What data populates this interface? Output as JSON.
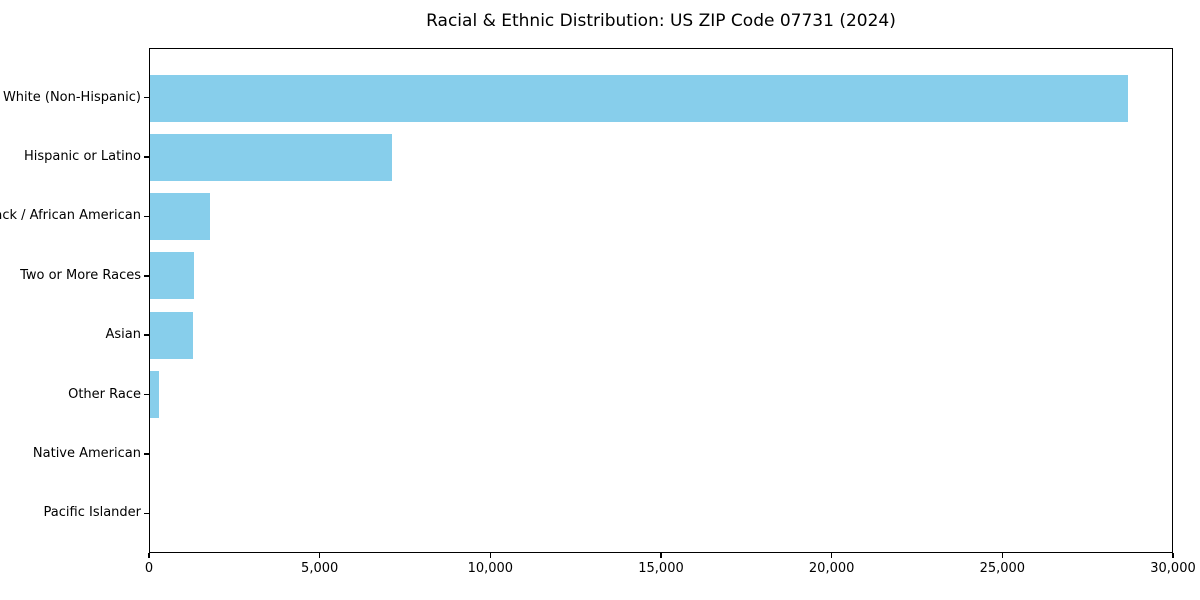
{
  "figure": {
    "background": "#ffffff",
    "text_color": "#000000"
  },
  "chart_data": {
    "type": "bar",
    "orientation": "horizontal",
    "title": "Racial & Ethnic Distribution: US ZIP Code 07731 (2024)",
    "categories": [
      "White (Non-Hispanic)",
      "Hispanic or Latino",
      "Black / African American",
      "Two or More Races",
      "Asian",
      "Other Race",
      "Native American",
      "Pacific Islander"
    ],
    "values": [
      28700,
      7100,
      1750,
      1300,
      1250,
      250,
      0,
      0
    ],
    "xlabel": "",
    "ylabel": "",
    "xlim": [
      0,
      30000
    ],
    "x_ticks": [
      {
        "value": 0,
        "label": "0"
      },
      {
        "value": 5000,
        "label": "5,000"
      },
      {
        "value": 10000,
        "label": "10,000"
      },
      {
        "value": 15000,
        "label": "15,000"
      },
      {
        "value": 20000,
        "label": "20,000"
      },
      {
        "value": 25000,
        "label": "25,000"
      },
      {
        "value": 30000,
        "label": "30,000"
      }
    ],
    "bar_color": "#87CEEB",
    "axis_color": "#000000",
    "grid": false,
    "legend": null
  }
}
